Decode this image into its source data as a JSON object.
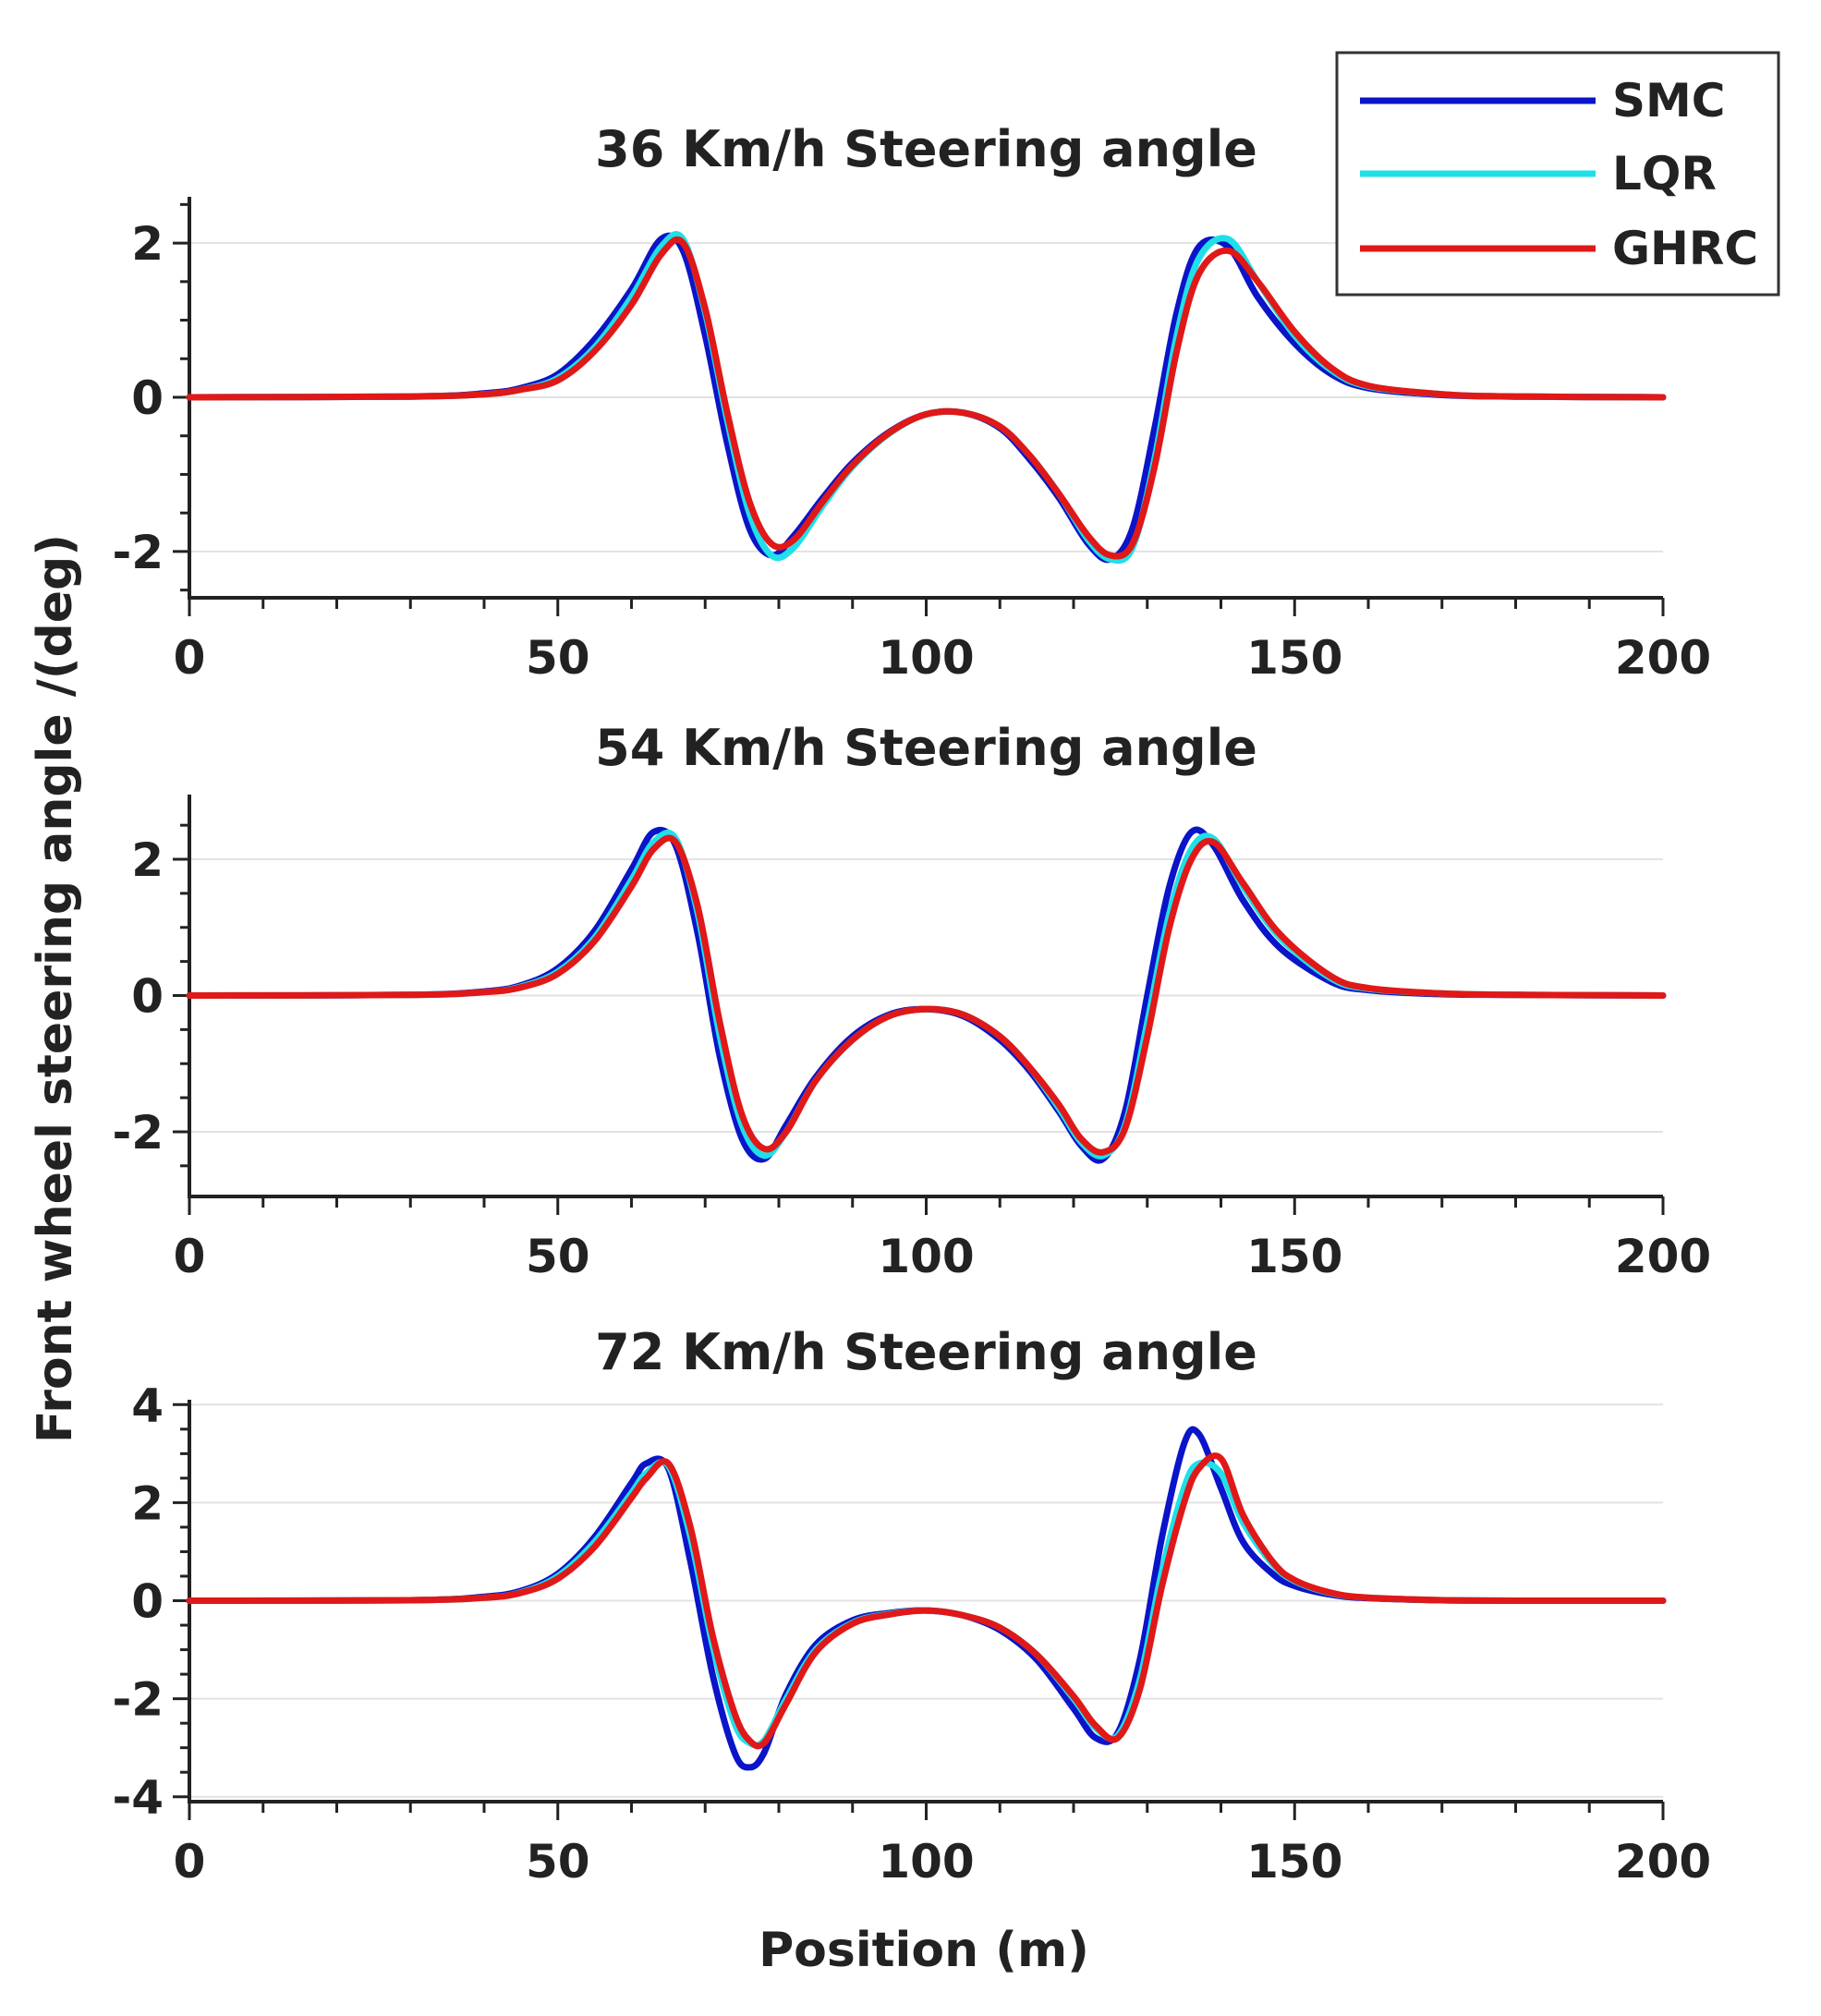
{
  "chart_data": [
    {
      "type": "line",
      "title": "36 Km/h Steering angle",
      "xlim": [
        0,
        200
      ],
      "ylim": [
        -2.6,
        2.6
      ],
      "xticks": [
        0,
        50,
        100,
        150,
        200
      ],
      "yticks": [
        -2,
        0,
        2
      ],
      "xtick_labels": [
        "0",
        "50",
        "100",
        "150",
        "200"
      ],
      "ytick_labels": [
        "-2",
        "0",
        "2"
      ],
      "x": [
        0,
        30,
        40,
        45,
        50,
        55,
        60,
        64,
        67,
        70,
        73,
        76,
        79,
        82,
        86,
        90,
        95,
        100,
        105,
        110,
        114,
        118,
        122,
        125,
        128,
        131,
        134,
        137,
        141,
        145,
        150,
        155,
        160,
        170,
        180,
        200
      ],
      "series": [
        {
          "name": "SMC",
          "color": "#0a14c8",
          "values": [
            0,
            0.01,
            0.05,
            0.12,
            0.3,
            0.75,
            1.4,
            2.05,
            1.9,
            0.8,
            -0.6,
            -1.7,
            -2.05,
            -1.8,
            -1.3,
            -0.85,
            -0.45,
            -0.22,
            -0.2,
            -0.4,
            -0.8,
            -1.3,
            -1.9,
            -2.1,
            -1.7,
            -0.4,
            1.1,
            1.95,
            1.95,
            1.3,
            0.7,
            0.3,
            0.12,
            0.03,
            0.01,
            0
          ]
        },
        {
          "name": "LQR",
          "color": "#1fe0e8",
          "values": [
            0,
            0.01,
            0.04,
            0.1,
            0.25,
            0.65,
            1.3,
            1.95,
            2.05,
            1.1,
            -0.3,
            -1.5,
            -2.05,
            -1.95,
            -1.4,
            -0.9,
            -0.47,
            -0.22,
            -0.2,
            -0.38,
            -0.75,
            -1.25,
            -1.85,
            -2.1,
            -1.95,
            -0.8,
            0.8,
            1.8,
            2.05,
            1.5,
            0.8,
            0.35,
            0.14,
            0.04,
            0.01,
            0
          ]
        },
        {
          "name": "GHRC",
          "color": "#e01818",
          "values": [
            0,
            0.01,
            0.04,
            0.1,
            0.22,
            0.6,
            1.2,
            1.85,
            2.0,
            1.15,
            -0.2,
            -1.35,
            -1.9,
            -1.85,
            -1.35,
            -0.88,
            -0.46,
            -0.22,
            -0.2,
            -0.38,
            -0.75,
            -1.25,
            -1.8,
            -2.05,
            -1.9,
            -0.9,
            0.6,
            1.6,
            1.9,
            1.5,
            0.85,
            0.38,
            0.15,
            0.04,
            0.01,
            0
          ]
        }
      ]
    },
    {
      "type": "line",
      "title": "54 Km/h Steering angle",
      "xlim": [
        0,
        200
      ],
      "ylim": [
        -2.95,
        2.95
      ],
      "xticks": [
        0,
        50,
        100,
        150,
        200
      ],
      "yticks": [
        -2,
        0,
        2
      ],
      "xtick_labels": [
        "0",
        "50",
        "100",
        "150",
        "200"
      ],
      "ytick_labels": [
        "-2",
        "0",
        "2"
      ],
      "x": [
        0,
        30,
        40,
        45,
        50,
        55,
        60,
        63,
        66,
        69,
        72,
        75,
        78,
        81,
        85,
        90,
        95,
        100,
        105,
        110,
        114,
        118,
        121,
        124,
        127,
        130,
        133,
        136,
        139,
        143,
        148,
        155,
        160,
        170,
        180,
        200
      ],
      "series": [
        {
          "name": "SMC",
          "color": "#0a14c8",
          "values": [
            0,
            0.01,
            0.06,
            0.15,
            0.4,
            0.95,
            1.85,
            2.4,
            2.2,
            0.9,
            -0.9,
            -2.1,
            -2.4,
            -1.9,
            -1.2,
            -0.6,
            -0.28,
            -0.2,
            -0.3,
            -0.65,
            -1.1,
            -1.7,
            -2.2,
            -2.4,
            -1.7,
            0.0,
            1.6,
            2.4,
            2.2,
            1.4,
            0.7,
            0.2,
            0.08,
            0.02,
            0.01,
            0
          ]
        },
        {
          "name": "LQR",
          "color": "#1fe0e8",
          "values": [
            0,
            0.01,
            0.05,
            0.13,
            0.35,
            0.85,
            1.7,
            2.25,
            2.3,
            1.2,
            -0.6,
            -1.9,
            -2.35,
            -2.0,
            -1.25,
            -0.65,
            -0.3,
            -0.2,
            -0.28,
            -0.6,
            -1.05,
            -1.65,
            -2.15,
            -2.35,
            -1.9,
            -0.4,
            1.2,
            2.15,
            2.3,
            1.6,
            0.85,
            0.25,
            0.1,
            0.03,
            0.01,
            0
          ]
        },
        {
          "name": "GHRC",
          "color": "#e01818",
          "values": [
            0,
            0.01,
            0.05,
            0.12,
            0.32,
            0.8,
            1.6,
            2.15,
            2.25,
            1.3,
            -0.4,
            -1.75,
            -2.25,
            -2.0,
            -1.25,
            -0.65,
            -0.3,
            -0.2,
            -0.28,
            -0.6,
            -1.05,
            -1.6,
            -2.1,
            -2.3,
            -1.95,
            -0.6,
            1.0,
            2.0,
            2.25,
            1.65,
            0.9,
            0.28,
            0.11,
            0.03,
            0.01,
            0
          ]
        }
      ]
    },
    {
      "type": "line",
      "title": "72 Km/h Steering angle",
      "xlim": [
        0,
        200
      ],
      "ylim": [
        -4.1,
        4.1
      ],
      "xticks": [
        0,
        50,
        100,
        150,
        200
      ],
      "yticks": [
        -4,
        -2,
        0,
        2,
        4
      ],
      "xtick_labels": [
        "0",
        "50",
        "100",
        "150",
        "200"
      ],
      "ytick_labels": [
        "-4",
        "-2",
        "0",
        "2",
        "4"
      ],
      "x": [
        0,
        30,
        40,
        45,
        50,
        55,
        60,
        62,
        65,
        68,
        71,
        74,
        76,
        78,
        81,
        85,
        90,
        95,
        100,
        105,
        110,
        115,
        120,
        123,
        126,
        129,
        132,
        135,
        137,
        140,
        143,
        147,
        150,
        155,
        160,
        170,
        180,
        200
      ],
      "series": [
        {
          "name": "SMC",
          "color": "#0a14c8",
          "values": [
            0,
            0.01,
            0.08,
            0.2,
            0.55,
            1.3,
            2.4,
            2.8,
            2.7,
            0.8,
            -1.5,
            -3.1,
            -3.4,
            -3.1,
            -1.9,
            -0.9,
            -0.4,
            -0.25,
            -0.2,
            -0.3,
            -0.6,
            -1.2,
            -2.2,
            -2.8,
            -2.7,
            -1.2,
            1.3,
            3.2,
            3.4,
            2.3,
            1.2,
            0.55,
            0.3,
            0.12,
            0.05,
            0.01,
            0,
            0
          ]
        },
        {
          "name": "LQR",
          "color": "#1fe0e8",
          "values": [
            0,
            0.01,
            0.06,
            0.17,
            0.5,
            1.2,
            2.2,
            2.6,
            2.75,
            1.3,
            -0.9,
            -2.5,
            -2.9,
            -2.85,
            -2.0,
            -1.0,
            -0.45,
            -0.27,
            -0.2,
            -0.3,
            -0.55,
            -1.1,
            -2.0,
            -2.6,
            -2.75,
            -1.6,
            0.6,
            2.3,
            2.8,
            2.6,
            1.6,
            0.75,
            0.4,
            0.15,
            0.06,
            0.01,
            0,
            0
          ]
        },
        {
          "name": "GHRC",
          "color": "#e01818",
          "values": [
            0,
            0.01,
            0.06,
            0.16,
            0.45,
            1.1,
            2.1,
            2.5,
            2.8,
            1.5,
            -0.7,
            -2.3,
            -2.85,
            -2.9,
            -2.1,
            -1.05,
            -0.47,
            -0.28,
            -0.2,
            -0.3,
            -0.55,
            -1.1,
            -1.95,
            -2.55,
            -2.8,
            -1.8,
            0.3,
            2.0,
            2.7,
            2.9,
            1.75,
            0.8,
            0.42,
            0.16,
            0.06,
            0.01,
            0,
            0
          ]
        }
      ]
    }
  ],
  "shared_ylabel": "Front wheel steering angle /(deg)",
  "shared_xlabel": "Position (m)",
  "legend": [
    {
      "name": "SMC",
      "color": "#0a14c8"
    },
    {
      "name": "LQR",
      "color": "#1fe0e8"
    },
    {
      "name": "GHRC",
      "color": "#e01818"
    }
  ]
}
